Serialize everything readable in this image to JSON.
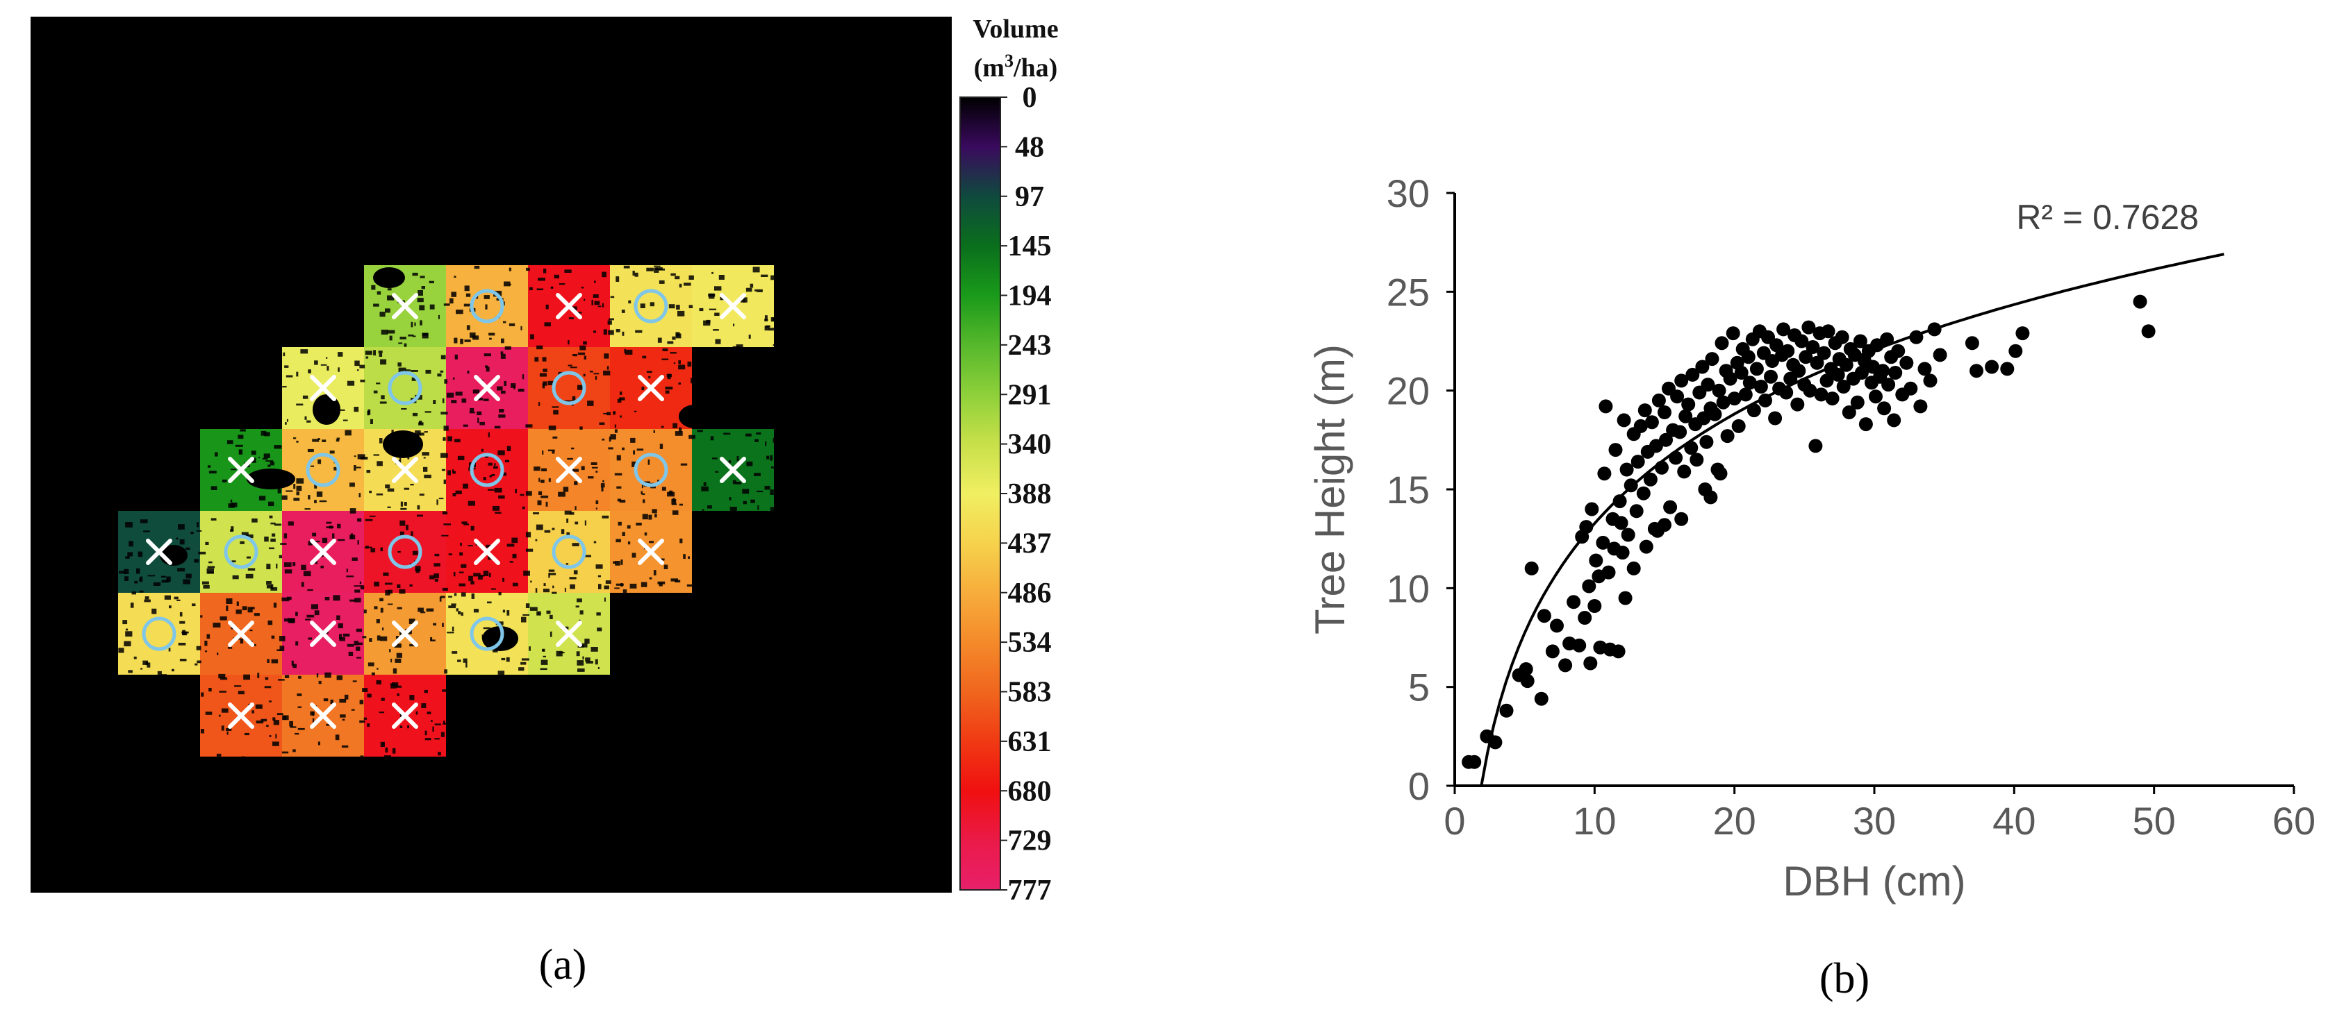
{
  "panels": {
    "a": {
      "label": "(a)"
    },
    "b": {
      "label": "(b)"
    }
  },
  "chart_data": [
    {
      "type": "heatmap",
      "panel": "a",
      "colorbar": {
        "title_line1": "Volume",
        "title_unit_prefix": "(m",
        "title_unit_sup": "3",
        "title_unit_suffix": "/ha)",
        "ticks": [
          "0",
          "48",
          "97",
          "145",
          "194",
          "243",
          "291",
          "340",
          "388",
          "437",
          "486",
          "534",
          "583",
          "631",
          "680",
          "729",
          "777"
        ],
        "range": [
          0,
          777
        ],
        "colors": [
          "#000000",
          "#3a0a5e",
          "#0f4a3e",
          "#0a6f1c",
          "#1a9a1a",
          "#56b82c",
          "#8ed03a",
          "#c8e04a",
          "#f0ef62",
          "#f6d24c",
          "#f7ad3c",
          "#f48a2a",
          "#f0661e",
          "#f03a14",
          "#f01010",
          "#ea1a48",
          "#e8206a"
        ]
      },
      "background_color": "#000000",
      "marker_legend": {
        "cross": "white-x-marker",
        "circle": "light-blue-circle-marker"
      },
      "grid_cells": [
        {
          "row": 0,
          "col": 3,
          "volume": 300,
          "marker": "x"
        },
        {
          "row": 0,
          "col": 4,
          "volume": 480,
          "marker": "o"
        },
        {
          "row": 0,
          "col": 5,
          "volume": 690,
          "marker": "x"
        },
        {
          "row": 0,
          "col": 6,
          "volume": 410,
          "marker": "o"
        },
        {
          "row": 0,
          "col": 7,
          "volume": 400,
          "marker": "x"
        },
        {
          "row": 1,
          "col": 2,
          "volume": 380,
          "marker": "x"
        },
        {
          "row": 1,
          "col": 3,
          "volume": 330,
          "marker": "o"
        },
        {
          "row": 1,
          "col": 4,
          "volume": 760,
          "marker": "x"
        },
        {
          "row": 1,
          "col": 5,
          "volume": 620,
          "marker": "o"
        },
        {
          "row": 1,
          "col": 6,
          "volume": 650,
          "marker": "x"
        },
        {
          "row": 2,
          "col": 1,
          "volume": 190,
          "marker": "x"
        },
        {
          "row": 2,
          "col": 2,
          "volume": 470,
          "marker": "o"
        },
        {
          "row": 2,
          "col": 3,
          "volume": 420,
          "marker": "x"
        },
        {
          "row": 2,
          "col": 4,
          "volume": 690,
          "marker": "o"
        },
        {
          "row": 2,
          "col": 5,
          "volume": 540,
          "marker": "x"
        },
        {
          "row": 2,
          "col": 6,
          "volume": 530,
          "marker": "o"
        },
        {
          "row": 2,
          "col": 7,
          "volume": 150,
          "marker": "x"
        },
        {
          "row": 3,
          "col": 0,
          "volume": 100,
          "marker": "x"
        },
        {
          "row": 3,
          "col": 1,
          "volume": 350,
          "marker": "o"
        },
        {
          "row": 3,
          "col": 2,
          "volume": 760,
          "marker": "x"
        },
        {
          "row": 3,
          "col": 3,
          "volume": 700,
          "marker": "o"
        },
        {
          "row": 3,
          "col": 4,
          "volume": 690,
          "marker": "x"
        },
        {
          "row": 3,
          "col": 5,
          "volume": 440,
          "marker": "o"
        },
        {
          "row": 3,
          "col": 6,
          "volume": 520,
          "marker": "x"
        },
        {
          "row": 4,
          "col": 0,
          "volume": 420,
          "marker": "o"
        },
        {
          "row": 4,
          "col": 1,
          "volume": 580,
          "marker": "x"
        },
        {
          "row": 4,
          "col": 2,
          "volume": 765,
          "marker": "x"
        },
        {
          "row": 4,
          "col": 3,
          "volume": 510,
          "marker": "x"
        },
        {
          "row": 4,
          "col": 4,
          "volume": 410,
          "marker": "o"
        },
        {
          "row": 4,
          "col": 5,
          "volume": 350,
          "marker": "x"
        },
        {
          "row": 5,
          "col": 1,
          "volume": 600,
          "marker": "x"
        },
        {
          "row": 5,
          "col": 2,
          "volume": 560,
          "marker": "x"
        },
        {
          "row": 5,
          "col": 3,
          "volume": 690,
          "marker": "x"
        }
      ]
    },
    {
      "type": "scatter",
      "panel": "b",
      "xlabel": "DBH (cm)",
      "ylabel": "Tree Height (m)",
      "xlim": [
        0,
        60
      ],
      "ylim": [
        0,
        30
      ],
      "xticks": [
        "0",
        "10",
        "20",
        "30",
        "40",
        "50",
        "60"
      ],
      "yticks": [
        "0",
        "5",
        "10",
        "15",
        "20",
        "25",
        "30"
      ],
      "grid": false,
      "annotation": "R² = 0.7628",
      "trendline": {
        "type": "logarithmic",
        "x": [
          1.9,
          3,
          5,
          8,
          10,
          15,
          20,
          25,
          30,
          35,
          40,
          45,
          50,
          55
        ],
        "y": [
          0.0,
          4.2,
          8.6,
          12.3,
          14.1,
          17.3,
          19.6,
          21.3,
          22.7,
          23.8,
          24.8,
          25.6,
          26.2,
          26.9
        ]
      },
      "points": [
        [
          1.0,
          1.2
        ],
        [
          1.4,
          1.2
        ],
        [
          2.3,
          2.5
        ],
        [
          2.9,
          2.2
        ],
        [
          3.7,
          3.8
        ],
        [
          4.6,
          5.6
        ],
        [
          5.1,
          5.9
        ],
        [
          5.2,
          5.3
        ],
        [
          5.5,
          11.0
        ],
        [
          6.2,
          4.4
        ],
        [
          6.4,
          8.6
        ],
        [
          7.0,
          6.8
        ],
        [
          7.3,
          8.1
        ],
        [
          7.9,
          6.1
        ],
        [
          8.2,
          7.2
        ],
        [
          8.5,
          9.3
        ],
        [
          8.9,
          7.1
        ],
        [
          9.1,
          12.6
        ],
        [
          9.3,
          8.5
        ],
        [
          9.4,
          13.1
        ],
        [
          9.6,
          10.1
        ],
        [
          9.7,
          6.2
        ],
        [
          9.8,
          14.0
        ],
        [
          10.0,
          9.1
        ],
        [
          10.1,
          11.4
        ],
        [
          10.3,
          10.6
        ],
        [
          10.4,
          7.0
        ],
        [
          10.6,
          12.3
        ],
        [
          10.7,
          15.8
        ],
        [
          10.8,
          19.2
        ],
        [
          11.0,
          10.8
        ],
        [
          11.1,
          6.9
        ],
        [
          11.3,
          13.5
        ],
        [
          11.4,
          12.0
        ],
        [
          11.5,
          17.0
        ],
        [
          11.7,
          6.8
        ],
        [
          11.8,
          14.4
        ],
        [
          12.0,
          11.8
        ],
        [
          12.1,
          18.5
        ],
        [
          12.3,
          16.0
        ],
        [
          12.4,
          12.7
        ],
        [
          12.6,
          15.2
        ],
        [
          12.8,
          17.8
        ],
        [
          13.0,
          13.9
        ],
        [
          13.1,
          16.4
        ],
        [
          13.3,
          18.2
        ],
        [
          13.5,
          14.8
        ],
        [
          13.6,
          19.0
        ],
        [
          13.8,
          16.9
        ],
        [
          14.0,
          15.5
        ],
        [
          14.1,
          18.4
        ],
        [
          14.3,
          13.0
        ],
        [
          14.4,
          17.2
        ],
        [
          14.6,
          19.5
        ],
        [
          14.8,
          16.1
        ],
        [
          15.0,
          18.9
        ],
        [
          15.1,
          17.5
        ],
        [
          15.3,
          20.1
        ],
        [
          15.4,
          14.1
        ],
        [
          15.6,
          18.0
        ],
        [
          15.8,
          16.6
        ],
        [
          15.9,
          19.7
        ],
        [
          16.1,
          17.9
        ],
        [
          16.2,
          20.5
        ],
        [
          16.4,
          15.9
        ],
        [
          16.5,
          18.7
        ],
        [
          16.7,
          19.3
        ],
        [
          16.9,
          17.1
        ],
        [
          17.0,
          20.8
        ],
        [
          17.2,
          18.3
        ],
        [
          17.3,
          16.5
        ],
        [
          17.5,
          19.9
        ],
        [
          17.7,
          21.2
        ],
        [
          17.8,
          18.6
        ],
        [
          18.0,
          17.4
        ],
        [
          18.1,
          20.3
        ],
        [
          18.3,
          19.1
        ],
        [
          18.4,
          21.6
        ],
        [
          18.6,
          18.8
        ],
        [
          18.8,
          16.0
        ],
        [
          18.9,
          20.0
        ],
        [
          19.1,
          22.4
        ],
        [
          19.2,
          19.4
        ],
        [
          19.4,
          21.0
        ],
        [
          19.5,
          17.7
        ],
        [
          19.7,
          20.6
        ],
        [
          19.9,
          22.9
        ],
        [
          20.0,
          19.6
        ],
        [
          20.2,
          21.4
        ],
        [
          20.3,
          18.2
        ],
        [
          20.5,
          20.9
        ],
        [
          20.6,
          22.1
        ],
        [
          20.8,
          19.8
        ],
        [
          21.0,
          21.7
        ],
        [
          21.1,
          20.4
        ],
        [
          21.3,
          22.6
        ],
        [
          21.4,
          19.0
        ],
        [
          21.6,
          21.1
        ],
        [
          21.8,
          23.0
        ],
        [
          21.9,
          20.2
        ],
        [
          22.1,
          21.9
        ],
        [
          22.2,
          19.5
        ],
        [
          22.4,
          22.7
        ],
        [
          22.6,
          20.7
        ],
        [
          22.7,
          21.5
        ],
        [
          22.9,
          18.6
        ],
        [
          23.0,
          22.3
        ],
        [
          23.2,
          20.1
        ],
        [
          23.4,
          21.8
        ],
        [
          23.5,
          23.1
        ],
        [
          23.7,
          19.9
        ],
        [
          23.8,
          22.0
        ],
        [
          24.0,
          20.6
        ],
        [
          24.2,
          21.3
        ],
        [
          24.3,
          22.8
        ],
        [
          24.5,
          19.3
        ],
        [
          24.6,
          21.0
        ],
        [
          24.8,
          22.5
        ],
        [
          25.0,
          20.3
        ],
        [
          25.1,
          21.7
        ],
        [
          25.3,
          23.2
        ],
        [
          25.4,
          20.0
        ],
        [
          25.6,
          22.2
        ],
        [
          25.8,
          17.2
        ],
        [
          25.9,
          21.4
        ],
        [
          26.1,
          22.9
        ],
        [
          26.2,
          19.8
        ],
        [
          26.4,
          21.9
        ],
        [
          26.6,
          20.5
        ],
        [
          26.7,
          23.0
        ],
        [
          26.9,
          21.1
        ],
        [
          27.0,
          19.6
        ],
        [
          27.2,
          22.4
        ],
        [
          27.4,
          20.8
        ],
        [
          27.5,
          21.6
        ],
        [
          27.7,
          22.7
        ],
        [
          27.8,
          20.2
        ],
        [
          28.0,
          21.3
        ],
        [
          28.2,
          18.9
        ],
        [
          28.3,
          22.1
        ],
        [
          28.5,
          20.6
        ],
        [
          28.6,
          21.8
        ],
        [
          28.8,
          19.4
        ],
        [
          29.0,
          22.5
        ],
        [
          29.1,
          20.9
        ],
        [
          29.3,
          21.5
        ],
        [
          29.4,
          18.3
        ],
        [
          29.6,
          22.0
        ],
        [
          29.8,
          20.4
        ],
        [
          29.9,
          21.2
        ],
        [
          30.1,
          19.7
        ],
        [
          30.2,
          22.3
        ],
        [
          30.4,
          20.7
        ],
        [
          30.6,
          21.0
        ],
        [
          30.7,
          19.1
        ],
        [
          30.9,
          22.6
        ],
        [
          31.0,
          20.3
        ],
        [
          31.2,
          21.7
        ],
        [
          31.4,
          18.5
        ],
        [
          31.5,
          20.9
        ],
        [
          31.7,
          22.0
        ],
        [
          32.0,
          19.8
        ],
        [
          32.3,
          21.4
        ],
        [
          32.6,
          20.1
        ],
        [
          33.0,
          22.7
        ],
        [
          33.3,
          19.2
        ],
        [
          33.6,
          21.1
        ],
        [
          34.0,
          20.5
        ],
        [
          34.3,
          23.1
        ],
        [
          34.7,
          21.8
        ],
        [
          37.0,
          22.4
        ],
        [
          37.3,
          21.0
        ],
        [
          38.4,
          21.2
        ],
        [
          39.5,
          21.1
        ],
        [
          40.1,
          22.0
        ],
        [
          40.6,
          22.9
        ],
        [
          49.0,
          24.5
        ],
        [
          49.6,
          23.0
        ],
        [
          16.2,
          13.5
        ],
        [
          15.0,
          13.2
        ],
        [
          14.5,
          12.9
        ],
        [
          12.8,
          11.0
        ],
        [
          13.7,
          12.1
        ],
        [
          12.2,
          9.5
        ],
        [
          11.9,
          13.3
        ],
        [
          17.9,
          15.0
        ],
        [
          19.0,
          15.8
        ],
        [
          18.3,
          14.6
        ]
      ]
    }
  ]
}
